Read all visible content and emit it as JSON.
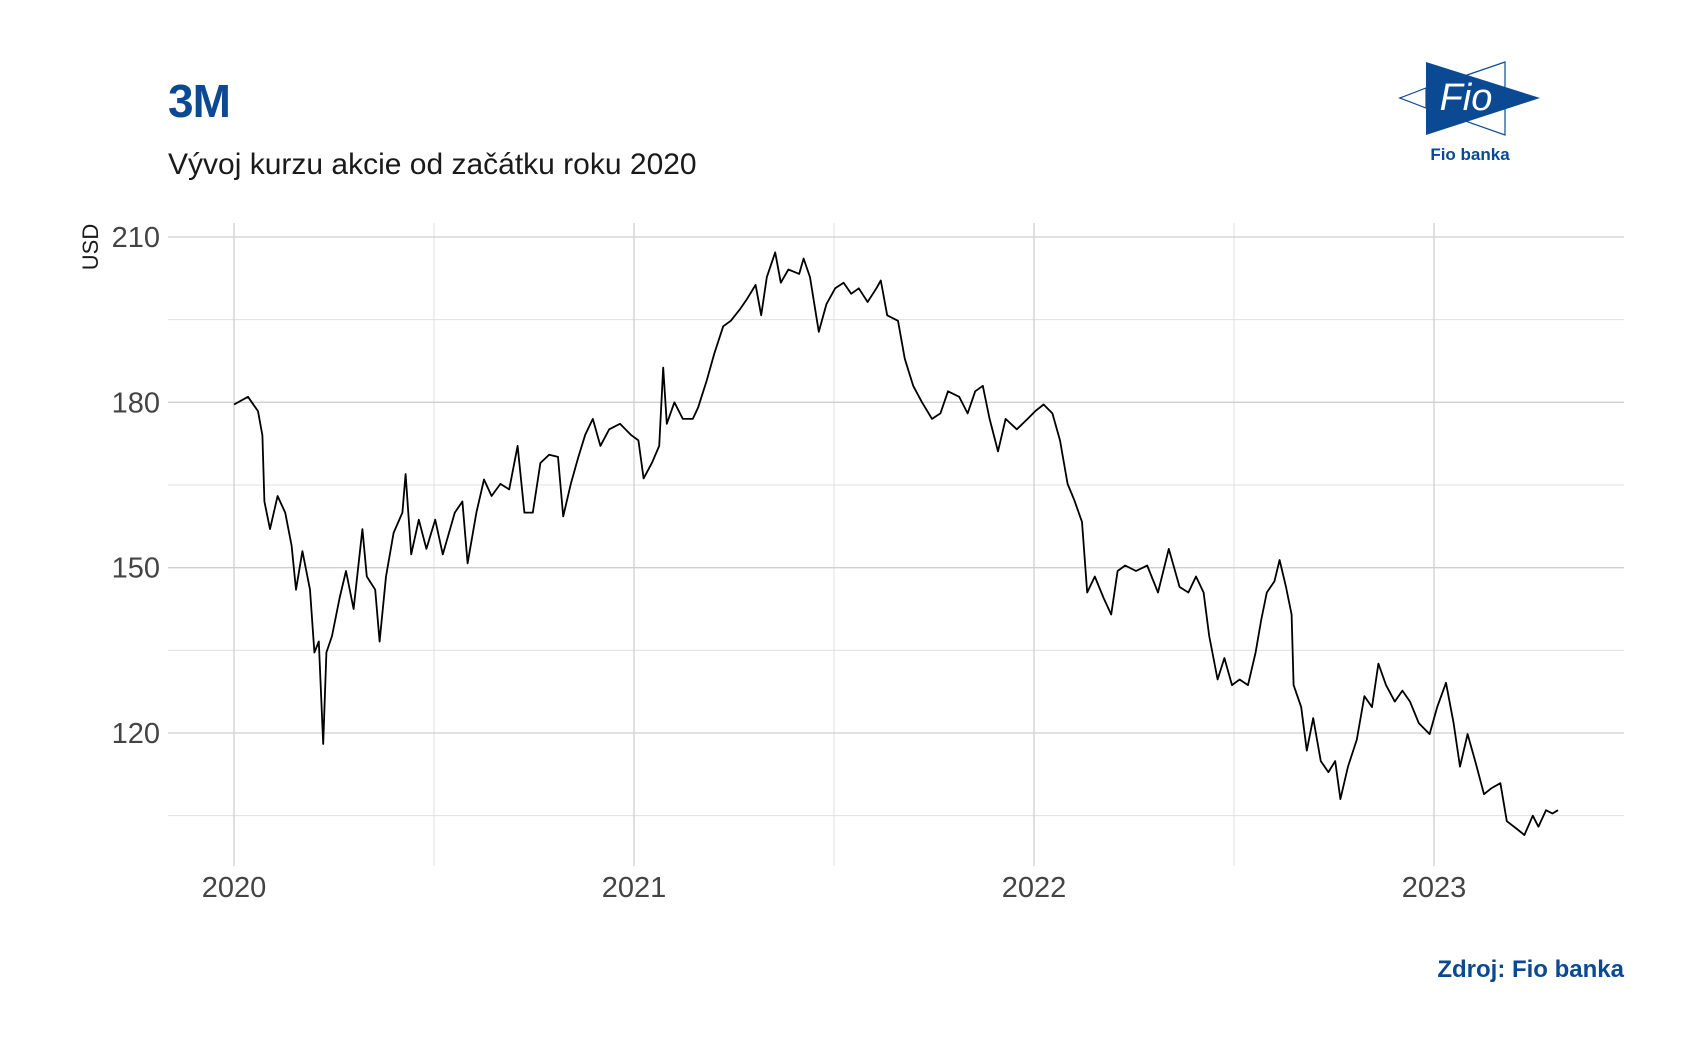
{
  "header": {
    "title": "3M",
    "subtitle": "Vývoj kurzu akcie od začátku roku 2020"
  },
  "logo": {
    "mark_text": "Fio",
    "caption": "Fio banka",
    "color": "#0b4a92"
  },
  "footer": {
    "source": "Zdroj: Fio banka"
  },
  "chart_data": {
    "type": "line",
    "title": "3M",
    "subtitle": "Vývoj kurzu akcie od začátku roku 2020",
    "xlabel": "",
    "ylabel": "USD",
    "xlim": [
      2019.84,
      2023.48
    ],
    "ylim": [
      96,
      212.4
    ],
    "y_ticks": [
      120,
      150,
      180,
      210
    ],
    "y_tick_labels": [
      "120",
      "150",
      "180",
      "210"
    ],
    "y_minor_ticks": [
      105,
      135,
      165,
      195
    ],
    "x_ticks": [
      2020,
      2021,
      2022,
      2023
    ],
    "x_tick_labels": [
      "2020",
      "2021",
      "2022",
      "2023"
    ],
    "x_minor_ticks": [
      2020.5,
      2021.5,
      2022.5
    ],
    "grid": true,
    "series": [
      {
        "name": "3M",
        "color": "#000000",
        "x": [
          2020.0,
          2020.035,
          2020.06,
          2020.071,
          2020.076,
          2020.09,
          2020.109,
          2020.128,
          2020.144,
          2020.155,
          2020.171,
          2020.19,
          2020.201,
          2020.212,
          2020.223,
          2020.231,
          2020.245,
          2020.264,
          2020.28,
          2020.299,
          2020.321,
          2020.332,
          2020.353,
          2020.364,
          2020.38,
          2020.399,
          2020.421,
          2020.429,
          2020.443,
          2020.462,
          2020.481,
          2020.503,
          2020.522,
          2020.552,
          2020.571,
          2020.584,
          2020.606,
          2020.625,
          2020.644,
          2020.666,
          2020.688,
          2020.709,
          2020.726,
          2020.747,
          2020.766,
          2020.788,
          2020.81,
          2020.823,
          2020.842,
          2020.861,
          2020.878,
          2020.897,
          2020.916,
          2020.938,
          2020.965,
          2020.992,
          2021.011,
          2021.024,
          2021.046,
          2021.063,
          2021.073,
          2021.082,
          2021.101,
          2021.122,
          2021.147,
          2021.16,
          2021.182,
          2021.201,
          2021.223,
          2021.242,
          2021.264,
          2021.283,
          2021.304,
          2021.318,
          2021.332,
          2021.353,
          2021.367,
          2021.386,
          2021.413,
          2021.424,
          2021.44,
          2021.462,
          2021.481,
          2021.503,
          2021.524,
          2021.543,
          2021.562,
          2021.584,
          2021.606,
          2021.617,
          2021.633,
          2021.66,
          2021.677,
          2021.698,
          2021.72,
          2021.745,
          2021.766,
          2021.785,
          2021.813,
          2021.834,
          2021.853,
          2021.872,
          2021.889,
          2021.91,
          2021.929,
          2021.957,
          2021.984,
          2022.003,
          2022.024,
          2022.046,
          2022.065,
          2022.084,
          2022.101,
          2022.12,
          2022.133,
          2022.152,
          2022.174,
          2022.193,
          2022.209,
          2022.228,
          2022.255,
          2022.283,
          2022.31,
          2022.337,
          2022.364,
          2022.386,
          2022.405,
          2022.424,
          2022.438,
          2022.459,
          2022.476,
          2022.495,
          2022.514,
          2022.535,
          2022.554,
          2022.568,
          2022.582,
          2022.601,
          2022.614,
          2022.63,
          2022.644,
          2022.649,
          2022.668,
          2022.682,
          2022.698,
          2022.717,
          2022.736,
          2022.753,
          2022.766,
          2022.785,
          2022.807,
          2022.826,
          2022.845,
          2022.861,
          2022.88,
          2022.902,
          2022.921,
          2022.94,
          2022.962,
          2022.989,
          2023.008,
          2023.03,
          2023.049,
          2023.065,
          2023.084,
          2023.103,
          2023.125,
          2023.144,
          2023.166,
          2023.182,
          2023.207,
          2023.226,
          2023.247,
          2023.261,
          2023.28,
          2023.296,
          2023.31
        ],
        "y": [
          179.6,
          181,
          178.4,
          174,
          162,
          157,
          163,
          160,
          154,
          146,
          153,
          146,
          134.6,
          136.6,
          118,
          134.6,
          137.6,
          144.5,
          149.4,
          142.5,
          157,
          148.4,
          146,
          136.6,
          148.4,
          156.3,
          160,
          167,
          152.4,
          158.7,
          153.4,
          158.7,
          152.4,
          160,
          162,
          150.8,
          160,
          166,
          163,
          165.2,
          164.2,
          172.1,
          160,
          160,
          169,
          170.5,
          170.1,
          159.3,
          165.2,
          170.1,
          174.1,
          177,
          172.1,
          175.1,
          176.1,
          174.1,
          173.1,
          166.2,
          169.2,
          172.1,
          186.3,
          176.1,
          180,
          177,
          177,
          179,
          184,
          188.9,
          193.8,
          194.8,
          196.8,
          198.8,
          201.3,
          195.8,
          202.7,
          207.2,
          201.7,
          204.1,
          203.3,
          206.1,
          202.7,
          192.8,
          197.8,
          200.7,
          201.7,
          199.7,
          200.7,
          198.2,
          200.7,
          202.1,
          195.8,
          194.8,
          187.9,
          183,
          180,
          177,
          178,
          182,
          181,
          178,
          182,
          183,
          177,
          171.1,
          177,
          175.1,
          177,
          178.4,
          179.6,
          178,
          173.1,
          165.2,
          162.2,
          158.3,
          145.5,
          148.4,
          144.5,
          141.5,
          149.4,
          150.4,
          149.4,
          150.4,
          145.5,
          153.4,
          146.5,
          145.5,
          148.4,
          145.5,
          137.6,
          129.7,
          133.6,
          128.7,
          129.7,
          128.7,
          134.6,
          140.5,
          145.5,
          147.5,
          151.4,
          146.5,
          141.5,
          128.7,
          124.7,
          116.8,
          122.7,
          114.9,
          112.9,
          114.9,
          108,
          113.9,
          118.8,
          126.7,
          124.7,
          132.6,
          128.7,
          125.7,
          127.7,
          125.7,
          121.8,
          119.8,
          124.7,
          129.1,
          121.8,
          113.9,
          119.8,
          114.9,
          108.9,
          110,
          110.9,
          104,
          102.6,
          101.5,
          105,
          103,
          106,
          105.4,
          106
        ]
      }
    ]
  }
}
